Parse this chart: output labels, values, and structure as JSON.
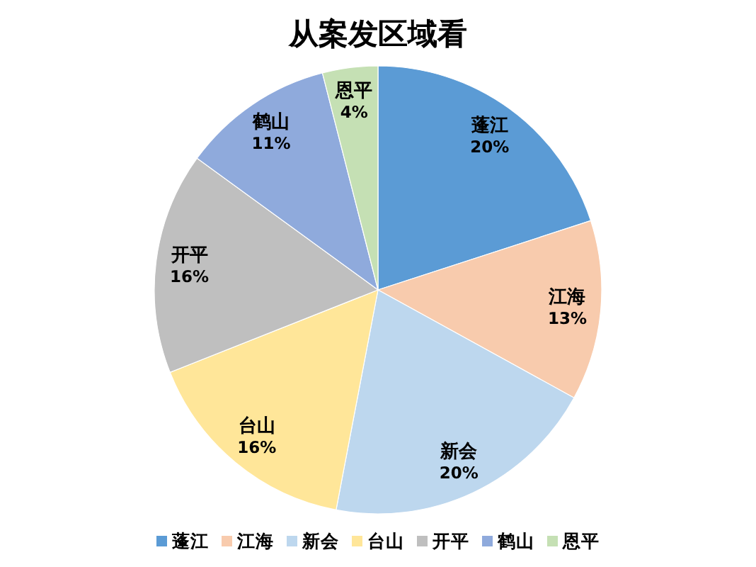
{
  "chart_data": {
    "type": "pie",
    "title": "从案发区域看",
    "categories": [
      "蓬江",
      "江海",
      "新会",
      "台山",
      "开平",
      "鹤山",
      "恩平"
    ],
    "values": [
      20,
      13,
      20,
      16,
      16,
      11,
      4
    ],
    "value_labels": [
      "20%",
      "13%",
      "20%",
      "16%",
      "16%",
      "11%",
      "4%"
    ],
    "colors": [
      "#5b9bd5",
      "#f8cbad",
      "#bdd7ee",
      "#ffe699",
      "#bfbfbf",
      "#8faadc",
      "#c5e0b4"
    ],
    "legend": "bottom"
  }
}
